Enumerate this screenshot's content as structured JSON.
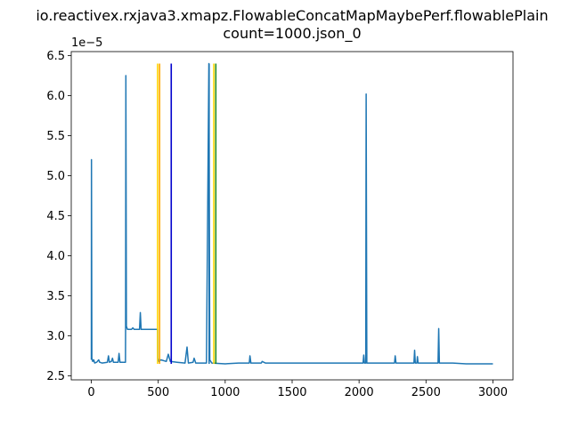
{
  "chart_data": {
    "type": "line",
    "title_lines": [
      "io.reactivex.rxjava3.xmapz.FlowableConcatMapMaybePerf.flowablePlain",
      "count=1000.json_0"
    ],
    "xlabel": "",
    "ylabel": "",
    "y_offset_label": "1e−5",
    "xlim": [
      -150,
      3150
    ],
    "ylim": [
      2.45,
      6.55
    ],
    "x_ticks": [
      0,
      500,
      1000,
      1500,
      2000,
      2500,
      3000
    ],
    "x_tick_labels": [
      "0",
      "500",
      "1000",
      "1500",
      "2000",
      "2500",
      "3000"
    ],
    "y_ticks": [
      2.5,
      3.0,
      3.5,
      4.0,
      4.5,
      5.0,
      5.5,
      6.0,
      6.5
    ],
    "y_tick_labels": [
      "2.5",
      "3.0",
      "3.5",
      "4.0",
      "4.5",
      "5.0",
      "5.5",
      "6.0",
      "6.5"
    ],
    "grid": false,
    "series_color": "#1f77b4",
    "series_points": [
      [
        0,
        2.7
      ],
      [
        1,
        5.2
      ],
      [
        4,
        2.72
      ],
      [
        10,
        2.68
      ],
      [
        18,
        2.7
      ],
      [
        25,
        2.66
      ],
      [
        40,
        2.67
      ],
      [
        55,
        2.7
      ],
      [
        62,
        2.67
      ],
      [
        80,
        2.66
      ],
      [
        120,
        2.67
      ],
      [
        128,
        2.75
      ],
      [
        135,
        2.67
      ],
      [
        150,
        2.68
      ],
      [
        158,
        2.72
      ],
      [
        165,
        2.67
      ],
      [
        200,
        2.67
      ],
      [
        207,
        2.78
      ],
      [
        214,
        2.67
      ],
      [
        255,
        2.67
      ],
      [
        256,
        3.1
      ],
      [
        258,
        6.25
      ],
      [
        262,
        3.12
      ],
      [
        270,
        3.08
      ],
      [
        300,
        3.08
      ],
      [
        310,
        3.1
      ],
      [
        320,
        3.08
      ],
      [
        360,
        3.08
      ],
      [
        366,
        3.29
      ],
      [
        372,
        3.08
      ],
      [
        420,
        3.08
      ],
      [
        495,
        3.08
      ],
      [
        496,
        2.72
      ],
      [
        505,
        2.68
      ],
      [
        520,
        2.7
      ],
      [
        560,
        2.68
      ],
      [
        575,
        2.77
      ],
      [
        590,
        2.68
      ],
      [
        640,
        2.67
      ],
      [
        700,
        2.66
      ],
      [
        715,
        2.86
      ],
      [
        725,
        2.66
      ],
      [
        760,
        2.67
      ],
      [
        768,
        2.72
      ],
      [
        780,
        2.66
      ],
      [
        860,
        2.66
      ],
      [
        878,
        6.4
      ],
      [
        885,
        2.7
      ],
      [
        900,
        2.66
      ],
      [
        1000,
        2.65
      ],
      [
        1100,
        2.66
      ],
      [
        1180,
        2.66
      ],
      [
        1185,
        2.75
      ],
      [
        1192,
        2.66
      ],
      [
        1270,
        2.66
      ],
      [
        1276,
        2.68
      ],
      [
        1300,
        2.66
      ],
      [
        1400,
        2.66
      ],
      [
        1500,
        2.66
      ],
      [
        1600,
        2.66
      ],
      [
        1700,
        2.66
      ],
      [
        1800,
        2.66
      ],
      [
        1900,
        2.66
      ],
      [
        2000,
        2.66
      ],
      [
        2030,
        2.66
      ],
      [
        2035,
        2.76
      ],
      [
        2040,
        2.66
      ],
      [
        2050,
        2.66
      ],
      [
        2053,
        6.02
      ],
      [
        2058,
        2.66
      ],
      [
        2100,
        2.66
      ],
      [
        2200,
        2.66
      ],
      [
        2265,
        2.66
      ],
      [
        2270,
        2.75
      ],
      [
        2276,
        2.66
      ],
      [
        2350,
        2.66
      ],
      [
        2410,
        2.66
      ],
      [
        2415,
        2.82
      ],
      [
        2420,
        2.66
      ],
      [
        2432,
        2.66
      ],
      [
        2436,
        2.74
      ],
      [
        2441,
        2.66
      ],
      [
        2500,
        2.66
      ],
      [
        2560,
        2.66
      ],
      [
        2590,
        2.66
      ],
      [
        2595,
        3.09
      ],
      [
        2600,
        2.66
      ],
      [
        2700,
        2.66
      ],
      [
        2800,
        2.65
      ],
      [
        2900,
        2.65
      ],
      [
        3000,
        2.65
      ]
    ],
    "vertical_lines": [
      {
        "x": 495,
        "y_top": 6.4,
        "color": "#ffd700"
      },
      {
        "x": 510,
        "y_top": 6.4,
        "color": "#ffa500"
      },
      {
        "x": 597,
        "y_top": 6.4,
        "color": "#0000cd"
      },
      {
        "x": 880,
        "y_top": 6.4,
        "color": "#1f77b4"
      },
      {
        "x": 915,
        "y_top": 6.4,
        "color": "#ffd700"
      },
      {
        "x": 930,
        "y_top": 6.4,
        "color": "#228b22"
      }
    ],
    "vertical_lines_y_bottom": 2.65
  }
}
